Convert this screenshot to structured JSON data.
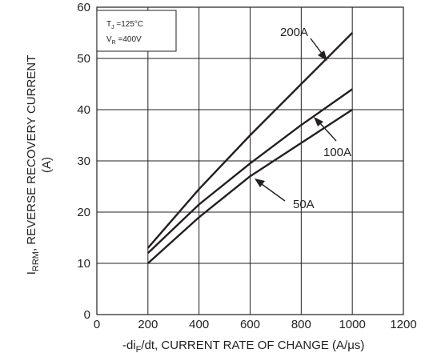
{
  "chart_data": {
    "type": "line",
    "x_axis": {
      "label_parts": [
        "-di",
        "F",
        "/dt, CURRENT RATE OF CHANGE (A/μs)"
      ],
      "range": [
        0,
        1200
      ],
      "ticks": [
        "0",
        "200",
        "400",
        "600",
        "800",
        "1000",
        "1200"
      ]
    },
    "y_axis": {
      "label_line1_parts": [
        "I",
        "RRM",
        ", REVERSE RECOVERY CURRENT"
      ],
      "label_line2": "(A)",
      "range": [
        0,
        60
      ],
      "ticks": [
        "0",
        "10",
        "20",
        "30",
        "40",
        "50",
        "60"
      ]
    },
    "grid": true,
    "conditions": {
      "tj_parts": [
        "T",
        "J",
        " =125°C"
      ],
      "vr_parts": [
        "V",
        "R",
        " =400V"
      ]
    },
    "series": [
      {
        "name": "200A",
        "x": [
          200,
          400,
          600,
          800,
          1000
        ],
        "y": [
          13,
          24.5,
          35,
          45,
          55
        ]
      },
      {
        "name": "100A",
        "x": [
          200,
          400,
          600,
          800,
          1000
        ],
        "y": [
          12,
          21.5,
          29.5,
          37,
          44
        ]
      },
      {
        "name": "50A",
        "x": [
          200,
          400,
          600,
          800,
          1000
        ],
        "y": [
          10,
          19,
          27,
          33.5,
          40
        ]
      }
    ]
  }
}
